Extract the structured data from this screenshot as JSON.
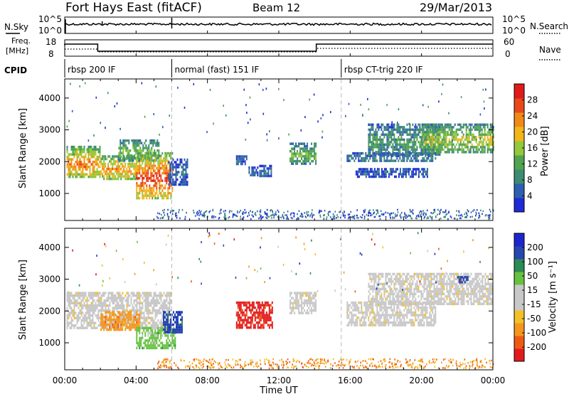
{
  "header": {
    "station": "Fort Hays East (fitACF)",
    "beam": "Beam 12",
    "date": "29/Mar/2013"
  },
  "top_panel": {
    "nsky_label": "N.Sky",
    "nsearch_label": "N.Search",
    "ticks": [
      "10^5",
      "10^0"
    ],
    "freq_label_line1": "Freq.",
    "freq_label_line2": "[MHz]",
    "freq_ticks": [
      "18",
      "8"
    ],
    "nave_ticks": [
      "60",
      "0"
    ],
    "nave_label": "Nave",
    "cpid_label": "CPID"
  },
  "cpid_segments": [
    {
      "label": "rbsp 200 IF",
      "start": 0,
      "end": 6.0
    },
    {
      "label": "normal (fast) 151 IF",
      "start": 6.0,
      "end": 15.5
    },
    {
      "label": "rbsp CT-trig 220 IF",
      "start": 15.5,
      "end": 24
    }
  ],
  "colors": {
    "power": [
      "#1f2bd6",
      "#2e5fb0",
      "#3d8b73",
      "#52a34f",
      "#93c83d",
      "#f2b51a",
      "#f08a17",
      "#e8491b",
      "#e01a1a"
    ],
    "velocity": [
      "#e31a1c",
      "#ee5a14",
      "#f5961c",
      "#f3c027",
      "#c8c8c8",
      "#c8c8c8",
      "#66c240",
      "#2d8a55",
      "#2547b0",
      "#1c26cc"
    ]
  },
  "chart_data": [
    {
      "type": "heatmap",
      "name": "power",
      "ylabel": "Slant Range [km]",
      "xlabel": "Time UT",
      "xlim": [
        0,
        24
      ],
      "ylim": [
        150,
        4600
      ],
      "x_ticks": [
        "00:00",
        "04:00",
        "08:00",
        "12:00",
        "16:00",
        "20:00",
        "00:00"
      ],
      "y_ticks": [
        1000,
        2000,
        3000,
        4000
      ],
      "colorbar": {
        "label": "Power [dB]",
        "ticks": [
          4,
          8,
          12,
          16,
          20,
          24,
          28
        ],
        "range": [
          0,
          32
        ]
      },
      "regions": [
        {
          "t0": 0.1,
          "t1": 2.0,
          "r0": 1500,
          "r1": 2500,
          "level": 0.72
        },
        {
          "t0": 2.0,
          "t1": 4.2,
          "r0": 1450,
          "r1": 2200,
          "level": 0.7
        },
        {
          "t0": 3.0,
          "t1": 5.3,
          "r0": 2050,
          "r1": 2700,
          "level": 0.42
        },
        {
          "t0": 4.0,
          "t1": 6.0,
          "r0": 850,
          "r1": 2300,
          "level": 0.85
        },
        {
          "t0": 5.8,
          "t1": 6.9,
          "r0": 1300,
          "r1": 2100,
          "level": 0.12
        },
        {
          "t0": 9.6,
          "t1": 10.2,
          "r0": 1900,
          "r1": 2200,
          "level": 0.15
        },
        {
          "t0": 10.3,
          "t1": 10.8,
          "r0": 1550,
          "r1": 1850,
          "level": 0.12
        },
        {
          "t0": 10.9,
          "t1": 11.6,
          "r0": 1550,
          "r1": 1900,
          "level": 0.15
        },
        {
          "t0": 12.6,
          "t1": 14.1,
          "r0": 1950,
          "r1": 2600,
          "level": 0.4
        },
        {
          "t0": 15.8,
          "t1": 20.8,
          "r0": 2000,
          "r1": 2300,
          "level": 0.18
        },
        {
          "t0": 16.3,
          "t1": 20.3,
          "r0": 1550,
          "r1": 1800,
          "level": 0.12
        },
        {
          "t0": 17.0,
          "t1": 21.0,
          "r0": 2200,
          "r1": 3200,
          "level": 0.3
        },
        {
          "t0": 20.0,
          "t1": 24.0,
          "r0": 2300,
          "r1": 3200,
          "level": 0.5
        }
      ]
    },
    {
      "type": "heatmap",
      "name": "velocity",
      "ylabel": "Slant Range [km]",
      "xlabel": "Time UT",
      "xlim": [
        0,
        24
      ],
      "ylim": [
        150,
        4600
      ],
      "x_ticks": [
        "00:00",
        "04:00",
        "08:00",
        "12:00",
        "16:00",
        "20:00",
        "00:00"
      ],
      "y_ticks": [
        1000,
        2000,
        3000,
        4000
      ],
      "colorbar": {
        "label": "Velocity [m s⁻¹]",
        "ticks": [
          "200",
          "100",
          "50",
          "15",
          "-15",
          "-50",
          "-100",
          "-200"
        ]
      },
      "regions": [
        {
          "t0": 0.1,
          "t1": 6.0,
          "r0": 1500,
          "r1": 2600,
          "vel": "gray"
        },
        {
          "t0": 2.0,
          "t1": 4.2,
          "r0": 1450,
          "r1": 2000,
          "vel": "orange"
        },
        {
          "t0": 4.0,
          "t1": 6.2,
          "r0": 850,
          "r1": 1500,
          "vel": "green"
        },
        {
          "t0": 5.5,
          "t1": 6.6,
          "r0": 1300,
          "r1": 2000,
          "vel": "blue"
        },
        {
          "t0": 9.6,
          "t1": 11.6,
          "r0": 1450,
          "r1": 2300,
          "vel": "red"
        },
        {
          "t0": 12.6,
          "t1": 14.1,
          "r0": 1950,
          "r1": 2600,
          "vel": "gray"
        },
        {
          "t0": 15.8,
          "t1": 20.8,
          "r0": 1550,
          "r1": 2300,
          "vel": "gray"
        },
        {
          "t0": 17.0,
          "t1": 24.0,
          "r0": 2200,
          "r1": 3200,
          "vel": "gray"
        },
        {
          "t0": 22.0,
          "t1": 22.6,
          "r0": 2900,
          "r1": 3100,
          "vel": "blue"
        }
      ]
    }
  ]
}
